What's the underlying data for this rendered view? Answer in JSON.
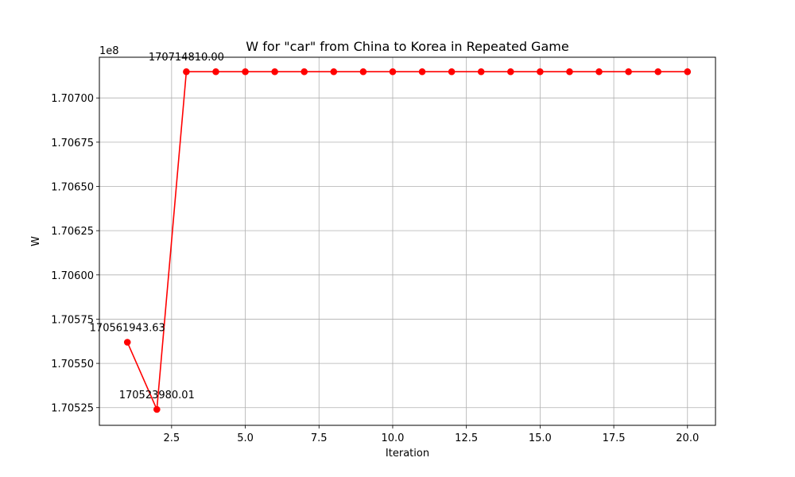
{
  "chart_data": {
    "type": "line",
    "title": "W for \"car\" from China to Korea in Repeated Game",
    "xlabel": "Iteration",
    "ylabel": "W",
    "offset_label": "1e8",
    "xlim": [
      0.05,
      20.95
    ],
    "ylim": [
      170515000,
      170723000
    ],
    "x_ticks": [
      2.5,
      5.0,
      7.5,
      10.0,
      12.5,
      15.0,
      17.5,
      20.0
    ],
    "x_tick_labels": [
      "2.5",
      "5.0",
      "7.5",
      "10.0",
      "12.5",
      "15.0",
      "17.5",
      "20.0"
    ],
    "y_ticks": [
      170525000,
      170550000,
      170575000,
      170600000,
      170625000,
      170650000,
      170675000,
      170700000
    ],
    "y_tick_labels": [
      "1.70525",
      "1.70550",
      "1.70575",
      "1.70600",
      "1.70625",
      "1.70650",
      "1.70675",
      "1.70700"
    ],
    "grid": true,
    "color": "#ff0000",
    "series": [
      {
        "x": [
          1,
          2,
          3,
          4,
          5,
          6,
          7,
          8,
          9,
          10,
          11,
          12,
          13,
          14,
          15,
          16,
          17,
          18,
          19,
          20
        ],
        "values": [
          170561943.63,
          170523980.01,
          170714810.0,
          170714810.0,
          170714810.0,
          170714810.0,
          170714810.0,
          170714810.0,
          170714810.0,
          170714810.0,
          170714810.0,
          170714810.0,
          170714810.0,
          170714810.0,
          170714810.0,
          170714810.0,
          170714810.0,
          170714810.0,
          170714810.0,
          170714810.0
        ]
      }
    ],
    "annotations": [
      {
        "x": 1,
        "y": 170561943.63,
        "text": "170561943.63"
      },
      {
        "x": 2,
        "y": 170523980.01,
        "text": "170523980.01"
      },
      {
        "x": 3,
        "y": 170714810.0,
        "text": "170714810.00"
      }
    ]
  }
}
